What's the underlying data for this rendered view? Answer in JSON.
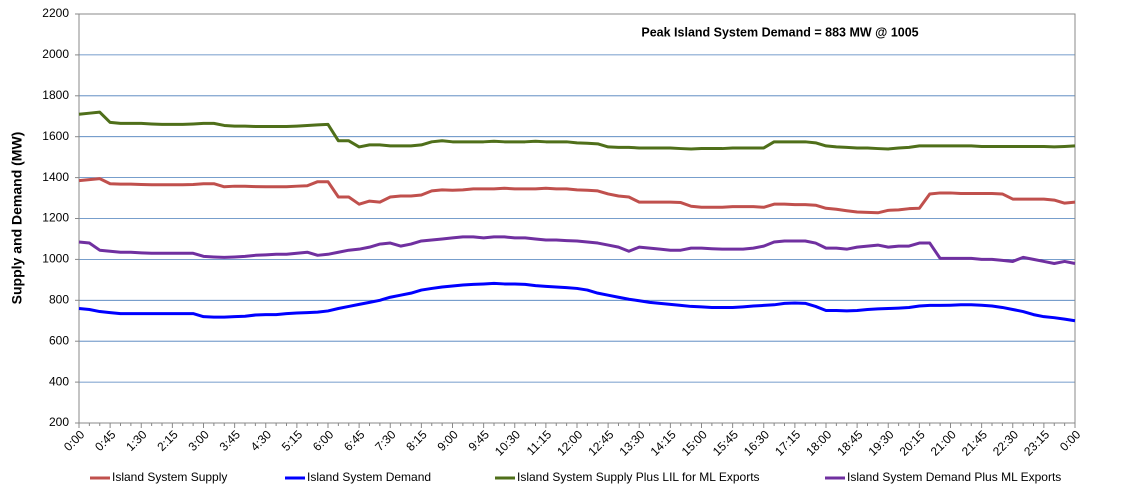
{
  "chart_data": {
    "type": "line",
    "annotation": "Peak Island System Demand = 883 MW @ 1005",
    "ylabel": "Supply and Demand (MW)",
    "categories": [
      "0:00",
      null,
      null,
      "0:45",
      null,
      null,
      "1:30",
      null,
      null,
      "2:15",
      null,
      null,
      "3:00",
      null,
      null,
      "3:45",
      null,
      null,
      "4:30",
      null,
      null,
      "5:15",
      null,
      null,
      "6:00",
      null,
      null,
      "6:45",
      null,
      null,
      "7:30",
      null,
      null,
      "8:15",
      null,
      null,
      "9:00",
      null,
      null,
      "9:45",
      null,
      null,
      "10:30",
      null,
      null,
      "11:15",
      null,
      null,
      "12:00",
      null,
      null,
      "12:45",
      null,
      null,
      "13:30",
      null,
      null,
      "14:15",
      null,
      null,
      "15:00",
      null,
      null,
      "15:45",
      null,
      null,
      "16:30",
      null,
      null,
      "17:15",
      null,
      null,
      "18:00",
      null,
      null,
      "18:45",
      null,
      null,
      "19:30",
      null,
      null,
      "20:15",
      null,
      null,
      "21:00",
      null,
      null,
      "21:45",
      null,
      null,
      "22:30",
      null,
      null,
      "23:15",
      null,
      null,
      "0:00"
    ],
    "series": [
      {
        "name": "Island System Supply",
        "color": "#c0504d",
        "values": [
          1385,
          1390,
          1395,
          1370,
          1368,
          1368,
          1366,
          1365,
          1365,
          1365,
          1365,
          1366,
          1370,
          1370,
          1355,
          1358,
          1358,
          1356,
          1355,
          1355,
          1355,
          1358,
          1360,
          1380,
          1380,
          1305,
          1305,
          1270,
          1285,
          1280,
          1305,
          1310,
          1310,
          1315,
          1335,
          1340,
          1338,
          1340,
          1345,
          1345,
          1345,
          1348,
          1345,
          1345,
          1345,
          1348,
          1345,
          1345,
          1340,
          1338,
          1335,
          1320,
          1310,
          1305,
          1280,
          1280,
          1280,
          1280,
          1278,
          1260,
          1255,
          1255,
          1255,
          1258,
          1258,
          1258,
          1255,
          1270,
          1270,
          1268,
          1268,
          1265,
          1250,
          1245,
          1238,
          1232,
          1230,
          1228,
          1240,
          1242,
          1248,
          1250,
          1320,
          1325,
          1325,
          1322,
          1322,
          1322,
          1322,
          1320,
          1295,
          1295,
          1295,
          1295,
          1290,
          1275,
          1280
        ]
      },
      {
        "name": "Island System Demand",
        "color": "#0000ff",
        "values": [
          760,
          755,
          745,
          740,
          735,
          735,
          735,
          735,
          735,
          735,
          735,
          735,
          720,
          718,
          718,
          720,
          722,
          728,
          730,
          730,
          735,
          738,
          740,
          742,
          748,
          760,
          770,
          780,
          790,
          800,
          815,
          825,
          835,
          850,
          858,
          865,
          870,
          875,
          878,
          880,
          883,
          880,
          880,
          878,
          872,
          868,
          865,
          862,
          858,
          850,
          835,
          825,
          815,
          805,
          798,
          790,
          785,
          780,
          775,
          770,
          768,
          765,
          765,
          765,
          768,
          772,
          775,
          778,
          785,
          787,
          785,
          770,
          750,
          750,
          748,
          750,
          755,
          758,
          760,
          762,
          765,
          772,
          775,
          775,
          776,
          778,
          778,
          776,
          772,
          765,
          755,
          745,
          730,
          720,
          715,
          708,
          700
        ]
      },
      {
        "name": "Island System Supply Plus LIL for ML Exports",
        "color": "#4f6f1a",
        "values": [
          1710,
          1715,
          1720,
          1670,
          1665,
          1665,
          1665,
          1662,
          1660,
          1660,
          1660,
          1662,
          1665,
          1665,
          1655,
          1652,
          1652,
          1650,
          1650,
          1650,
          1650,
          1652,
          1655,
          1658,
          1660,
          1580,
          1580,
          1550,
          1560,
          1560,
          1555,
          1555,
          1555,
          1560,
          1575,
          1580,
          1575,
          1575,
          1575,
          1575,
          1578,
          1575,
          1575,
          1575,
          1578,
          1575,
          1575,
          1575,
          1570,
          1568,
          1565,
          1550,
          1548,
          1548,
          1545,
          1545,
          1545,
          1545,
          1542,
          1540,
          1542,
          1542,
          1542,
          1545,
          1545,
          1545,
          1545,
          1575,
          1575,
          1575,
          1575,
          1570,
          1555,
          1550,
          1548,
          1545,
          1545,
          1542,
          1540,
          1545,
          1548,
          1555,
          1555,
          1555,
          1555,
          1555,
          1555,
          1552,
          1552,
          1552,
          1552,
          1552,
          1552,
          1552,
          1550,
          1552,
          1555
        ]
      },
      {
        "name": "Island System Demand Plus ML Exports",
        "color": "#7030a0",
        "values": [
          1085,
          1080,
          1045,
          1040,
          1035,
          1035,
          1032,
          1030,
          1030,
          1030,
          1030,
          1030,
          1015,
          1012,
          1010,
          1012,
          1015,
          1020,
          1022,
          1025,
          1025,
          1030,
          1035,
          1020,
          1025,
          1035,
          1045,
          1050,
          1060,
          1075,
          1080,
          1065,
          1075,
          1090,
          1095,
          1100,
          1105,
          1110,
          1110,
          1105,
          1110,
          1110,
          1105,
          1105,
          1100,
          1095,
          1095,
          1092,
          1090,
          1085,
          1080,
          1070,
          1060,
          1040,
          1060,
          1055,
          1050,
          1045,
          1045,
          1055,
          1055,
          1052,
          1050,
          1050,
          1050,
          1055,
          1065,
          1085,
          1090,
          1090,
          1090,
          1080,
          1055,
          1055,
          1050,
          1060,
          1065,
          1070,
          1060,
          1065,
          1065,
          1080,
          1080,
          1005,
          1005,
          1005,
          1005,
          1000,
          1000,
          995,
          990,
          1010,
          1000,
          990,
          980,
          990,
          980
        ]
      }
    ],
    "ylim": [
      200,
      2200
    ],
    "yticks": [
      200,
      400,
      600,
      800,
      1000,
      1200,
      1400,
      1600,
      1800,
      2000,
      2200
    ],
    "grid": true,
    "legend": "bottom"
  }
}
